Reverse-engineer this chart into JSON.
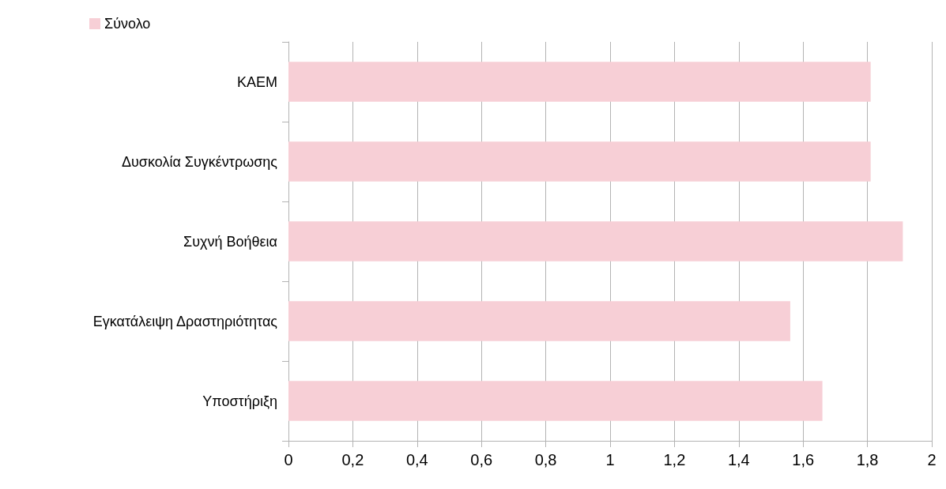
{
  "chart_data": {
    "type": "bar",
    "orientation": "horizontal",
    "categories": [
      "ΚΑΕΜ",
      "Δυσκολία Συγκέντρωσης",
      "Συχνή Βοήθεια",
      "Εγκατάλειψη Δραστηριότητας",
      "Υποστήριξη"
    ],
    "series": [
      {
        "name": "Σύνολο",
        "color": "#f7cfd6",
        "values": [
          1.81,
          1.81,
          1.91,
          1.56,
          1.66
        ]
      }
    ],
    "xlim": [
      0,
      2
    ],
    "xticks": [
      0,
      {
        "value": 0.2,
        "label": "0,2"
      },
      {
        "value": 0.4,
        "label": "0,4"
      },
      {
        "value": 0.6,
        "label": "0,6"
      },
      {
        "value": 0.8,
        "label": "0,8"
      },
      1,
      {
        "value": 1.2,
        "label": "1,2"
      },
      {
        "value": 1.4,
        "label": "1,4"
      },
      {
        "value": 1.6,
        "label": "1,6"
      },
      {
        "value": 1.8,
        "label": "1,8"
      },
      2
    ],
    "grid": "x",
    "legend": "top left"
  }
}
